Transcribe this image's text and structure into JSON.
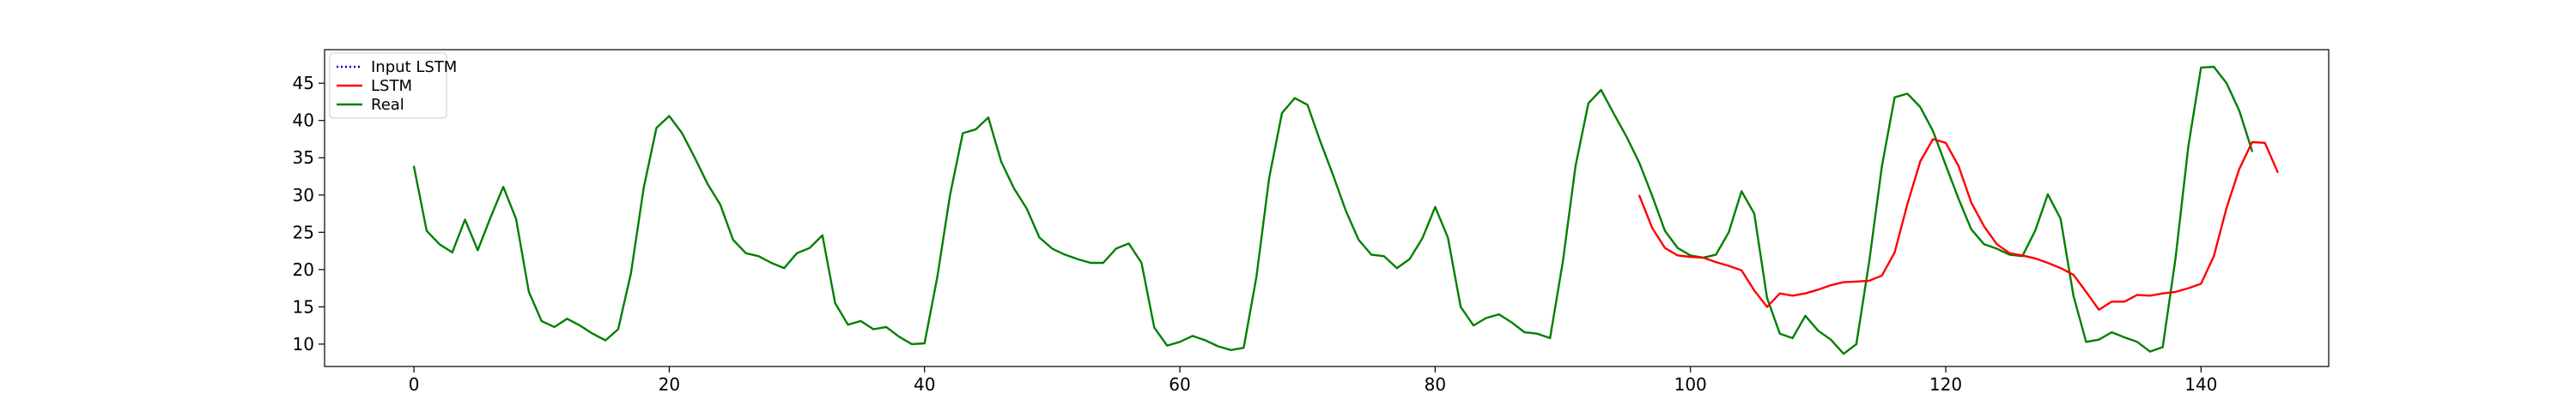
{
  "chart_data": {
    "type": "line",
    "title": "",
    "xlabel": "",
    "ylabel": "",
    "xlim": [
      -7,
      150
    ],
    "ylim": [
      7,
      49.5
    ],
    "xticks": [
      0,
      20,
      40,
      60,
      80,
      100,
      120,
      140
    ],
    "yticks": [
      10,
      15,
      20,
      25,
      30,
      35,
      40,
      45
    ],
    "grid": false,
    "legend": {
      "position": "top-left",
      "entries": [
        {
          "label": "Input LSTM",
          "color": "#0000cc",
          "style": "dotted"
        },
        {
          "label": "LSTM",
          "color": "#ff0000",
          "style": "solid"
        },
        {
          "label": "Real",
          "color": "#008000",
          "style": "solid"
        }
      ]
    },
    "series": [
      {
        "name": "Real",
        "color": "#008000",
        "x_start": 0,
        "values": [
          33.8,
          25.2,
          23.4,
          22.3,
          26.7,
          22.6,
          27.0,
          31.1,
          26.8,
          17.0,
          13.1,
          12.3,
          13.4,
          12.5,
          11.4,
          10.5,
          12.0,
          19.5,
          31.0,
          39.0,
          40.6,
          38.3,
          35.0,
          31.5,
          28.7,
          24.0,
          22.2,
          21.8,
          20.9,
          20.2,
          22.2,
          22.9,
          24.6,
          15.5,
          12.6,
          13.1,
          12.0,
          12.3,
          11.0,
          10.0,
          10.1,
          19.0,
          30.0,
          38.3,
          38.8,
          40.4,
          34.5,
          30.9,
          28.2,
          24.3,
          22.8,
          22.0,
          21.4,
          20.9,
          20.9,
          22.8,
          23.5,
          20.9,
          12.2,
          9.8,
          10.3,
          11.1,
          10.5,
          9.7,
          9.2,
          9.5,
          19.0,
          32.3,
          41.0,
          43.0,
          42.1,
          37.2,
          32.7,
          27.9,
          24.0,
          22.0,
          21.8,
          20.2,
          21.4,
          24.2,
          28.4,
          24.3,
          15.0,
          12.5,
          13.5,
          14.0,
          12.9,
          11.6,
          11.4,
          10.8,
          21.0,
          33.9,
          42.3,
          44.1,
          40.9,
          37.8,
          34.3,
          29.9,
          25.2,
          22.9,
          21.9,
          21.6,
          22.0,
          25.0,
          30.5,
          27.5,
          16.2,
          11.4,
          10.8,
          13.8,
          11.8,
          10.6,
          8.7,
          10.0,
          21.0,
          33.9,
          43.1,
          43.6,
          41.8,
          38.6,
          34.0,
          29.5,
          25.4,
          23.4,
          22.8,
          22.0,
          21.8,
          25.2,
          30.1,
          26.8,
          16.5,
          10.3,
          10.6,
          11.6,
          10.9,
          10.3,
          9.0,
          9.6,
          21.5,
          36.5,
          47.1,
          47.2,
          45.0,
          41.3,
          35.9
        ]
      },
      {
        "name": "LSTM",
        "color": "#ff0000",
        "x_start": 96,
        "values": [
          29.9,
          25.6,
          22.9,
          21.9,
          21.7,
          21.6,
          21.0,
          20.5,
          19.9,
          17.2,
          15.0,
          16.8,
          16.5,
          16.8,
          17.3,
          17.9,
          18.3,
          18.4,
          18.5,
          19.2,
          22.3,
          28.8,
          34.5,
          37.5,
          37.0,
          33.9,
          29.0,
          25.8,
          23.4,
          22.2,
          21.9,
          21.5,
          20.9,
          20.2,
          19.3,
          17.0,
          14.6,
          15.7,
          15.7,
          16.6,
          16.5,
          16.8,
          17.0,
          17.5,
          18.1,
          21.8,
          28.3,
          33.5,
          37.1,
          37.0,
          33.1
        ]
      }
    ]
  }
}
